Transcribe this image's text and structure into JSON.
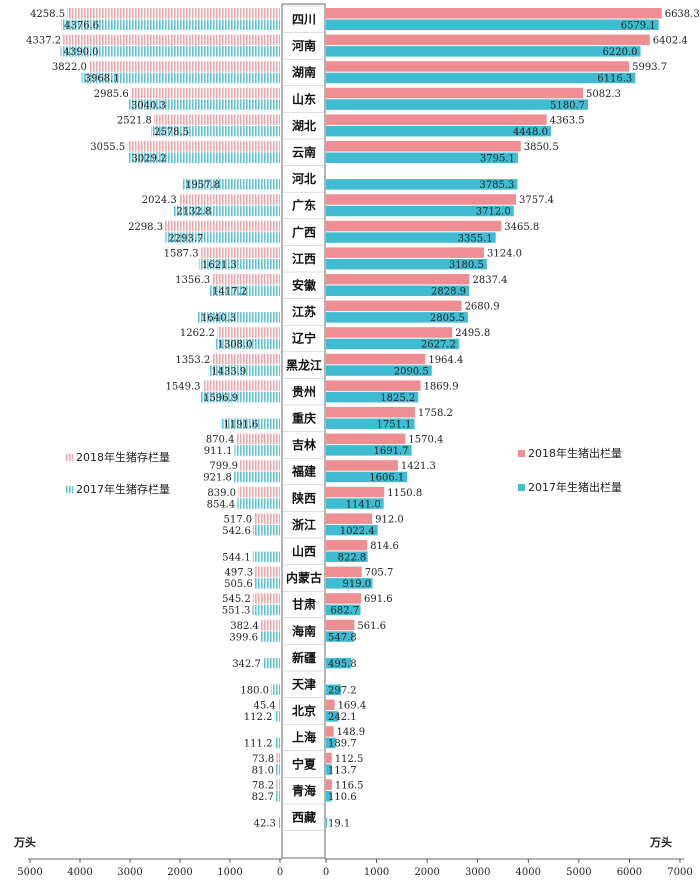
{
  "chart_data": {
    "type": "bar",
    "layout": "butterfly",
    "categories": [
      "四川",
      "河南",
      "湖南",
      "山东",
      "湖北",
      "云南",
      "河北",
      "广东",
      "广西",
      "江西",
      "安徽",
      "江苏",
      "辽宁",
      "黑龙江",
      "贵州",
      "重庆",
      "吉林",
      "福建",
      "陕西",
      "浙江",
      "山西",
      "内蒙古",
      "甘肃",
      "海南",
      "新疆",
      "天津",
      "北京",
      "上海",
      "宁夏",
      "青海",
      "西藏"
    ],
    "left": {
      "unit": "万头",
      "xlim": [
        0,
        5000
      ],
      "ticks": [
        "5000",
        "4000",
        "3000",
        "2000",
        "1000",
        "0"
      ],
      "series": [
        {
          "name": "2018年生猪存栏量",
          "color": "#f0a7ab",
          "labels": [
            "4258.5",
            "4337.2",
            "3822.0",
            "2985.6",
            "2521.8",
            "3055.5",
            "",
            "2024.3",
            "2298.3",
            "1587.3",
            "1356.3",
            "",
            "1262.2",
            "1353.2",
            "1549.3",
            "",
            "870.4",
            "799.9",
            "839.0",
            "517.0",
            "",
            "497.3",
            "545.2",
            "382.4",
            "",
            "",
            "45.4",
            "",
            "73.8",
            "78.2",
            ""
          ]
        },
        {
          "name": "2017年生猪存栏量",
          "color": "#5fc3d6",
          "labels": [
            "4376.6",
            "4390.0",
            "3968.1",
            "3040.3",
            "2578.5",
            "3029.2",
            "1957.8",
            "2132.8",
            "2293.7",
            "1621.3",
            "1417.2",
            "1640.3",
            "1308.0",
            "1433.9",
            "1596.9",
            "1191.6",
            "911.1",
            "921.8",
            "854.4",
            "542.6",
            "544.1",
            "505.6",
            "551.3",
            "399.6",
            "342.7",
            "180.0",
            "112.2",
            "111.2",
            "81.0",
            "82.7",
            "42.3"
          ]
        }
      ]
    },
    "right": {
      "unit": "万头",
      "xlim": [
        0,
        7000
      ],
      "ticks": [
        "0",
        "1000",
        "2000",
        "3000",
        "4000",
        "5000",
        "6000",
        "7000"
      ],
      "series": [
        {
          "name": "2018年生猪出栏量",
          "color": "#ee8e92",
          "labels": [
            "6638.3",
            "6402.4",
            "5993.7",
            "5082.3",
            "4363.5",
            "3850.5",
            "",
            "3757.4",
            "3465.8",
            "3124.0",
            "2837.4",
            "2680.9",
            "2495.8",
            "1964.4",
            "1869.9",
            "1758.2",
            "1570.4",
            "1421.3",
            "1150.8",
            "912.0",
            "814.6",
            "705.7",
            "691.6",
            "561.6",
            "",
            "",
            "169.4",
            "148.9",
            "112.5",
            "116.5",
            ""
          ]
        },
        {
          "name": "2017年生猪出栏量",
          "color": "#3fbcd2",
          "labels": [
            "6579.1",
            "6220.0",
            "6116.3",
            "5180.7",
            "4448.0",
            "3795.1",
            "3785.3",
            "3712.0",
            "3355.1",
            "3180.5",
            "2828.9",
            "2805.5",
            "2627.2",
            "2090.5",
            "1825.2",
            "1751.1",
            "1691.7",
            "1606.1",
            "1141.0",
            "1022.4",
            "822.8",
            "919.0",
            "682.7",
            "547.8",
            "495.8",
            "297.2",
            "242.1",
            "189.7",
            "113.7",
            "110.6",
            "19.1"
          ]
        }
      ]
    },
    "legend_placement": "middle"
  }
}
